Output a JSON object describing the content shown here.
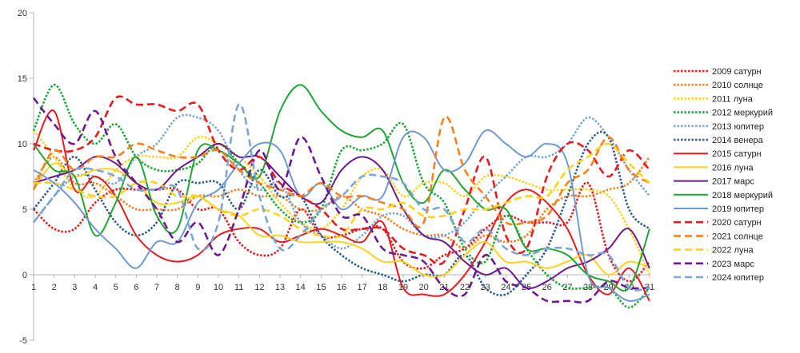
{
  "chart_data": {
    "type": "line",
    "x": [
      1,
      2,
      3,
      4,
      5,
      6,
      7,
      8,
      9,
      10,
      11,
      12,
      13,
      14,
      15,
      16,
      17,
      18,
      19,
      20,
      21,
      22,
      23,
      24,
      25,
      26,
      27,
      28,
      29,
      30,
      31
    ],
    "ylim": [
      -5,
      20
    ],
    "yticks": [
      -5,
      0,
      5,
      10,
      15,
      20
    ],
    "grid": false,
    "legend_position": "right",
    "series": [
      {
        "name": "2009 сатурн",
        "color": "#e8191f",
        "dash": "dotted",
        "values": [
          5,
          3.5,
          3.5,
          5.5,
          6.5,
          6.5,
          6.5,
          6.5,
          5,
          5,
          2.5,
          1.5,
          2,
          5,
          3,
          3,
          3.5,
          3.5,
          1,
          0.5,
          1.5,
          2,
          3.5,
          4.5,
          4,
          4,
          4,
          7,
          1.5,
          -0.5,
          1
        ]
      },
      {
        "name": "2010 солнце",
        "color": "#f5821f",
        "dash": "dotted",
        "values": [
          7,
          9,
          7,
          7,
          6,
          5,
          5,
          5,
          6,
          6,
          6.5,
          6,
          6,
          5,
          5,
          6,
          5,
          4.5,
          3.5,
          3,
          3,
          2,
          3,
          2.5,
          3,
          5,
          6,
          6,
          6.5,
          7,
          9
        ]
      },
      {
        "name": "2011 луна",
        "color": "#ffd21e",
        "dash": "dotted",
        "values": [
          11,
          9,
          6.5,
          6,
          8,
          9,
          9,
          9,
          10.5,
          10,
          9,
          7.5,
          5.5,
          4,
          3.5,
          5,
          7.5,
          8,
          6,
          7,
          7,
          6,
          7.5,
          7.5,
          7,
          6.5,
          6.5,
          6.5,
          6,
          3.5,
          0
        ]
      },
      {
        "name": "2012 меркурий",
        "color": "#1fa637",
        "dash": "dotted",
        "values": [
          11,
          14.5,
          11.5,
          10,
          11.5,
          9,
          8,
          8,
          8.5,
          10,
          8.5,
          7,
          5,
          4,
          5,
          9.5,
          9.5,
          10,
          11.5,
          7,
          5.5,
          2,
          1,
          4.5,
          2,
          0,
          -1,
          -1,
          -1,
          -2.5,
          -1
        ]
      },
      {
        "name": "2013 юпитер",
        "color": "#7ea6d4",
        "dash": "dotted",
        "values": [
          4,
          6,
          7.5,
          7.5,
          7,
          9,
          10,
          12,
          12,
          11,
          8,
          6.5,
          7,
          4,
          3,
          2,
          3,
          4.5,
          4.5,
          3,
          3,
          4,
          6,
          7.5,
          9,
          9,
          10,
          12,
          10.5,
          8,
          6
        ]
      },
      {
        "name": "2014 венера",
        "color": "#2e5d8f",
        "dash": "dotted",
        "values": [
          5,
          7,
          9,
          6.5,
          4,
          3,
          4,
          7,
          7,
          7,
          5,
          8,
          6,
          6,
          3,
          1.5,
          0.5,
          0,
          -0.5,
          0,
          0,
          1.5,
          -1,
          -1.5,
          0,
          2,
          6,
          10,
          10.5,
          5,
          3.5
        ]
      },
      {
        "name": "2015 сатурн",
        "color": "#e8191f",
        "dash": "solid",
        "values": [
          9.5,
          12.5,
          6.5,
          7.5,
          6,
          3,
          1.5,
          1,
          1.5,
          3,
          3.5,
          3.5,
          2.5,
          3,
          3.5,
          3,
          2.5,
          4,
          -1,
          -1.5,
          -1.5,
          0,
          2.5,
          5.5,
          6.5,
          5.5,
          3.5,
          0,
          -1.5,
          0.5,
          -2
        ]
      },
      {
        "name": "2016 луна",
        "color": "#ffd21e",
        "dash": "solid",
        "values": [
          6.5,
          8.5,
          7.5,
          8,
          8,
          7,
          5.5,
          5.5,
          6,
          5,
          4.5,
          3,
          3,
          2.5,
          2.5,
          2.5,
          2,
          1,
          1,
          0,
          0,
          1.5,
          2.5,
          1,
          1,
          0.5,
          1,
          1.5,
          0,
          1,
          0.5
        ]
      },
      {
        "name": "2017 марс",
        "color": "#6d1a8f",
        "dash": "solid",
        "values": [
          7,
          7.5,
          8,
          9,
          8.5,
          7,
          6.5,
          8,
          9,
          10,
          9,
          9,
          7.5,
          6,
          5.5,
          8,
          9,
          8,
          5,
          3,
          2.5,
          1,
          0,
          0.5,
          -1,
          -0.5,
          0.5,
          1,
          2,
          3.5,
          0.5
        ]
      },
      {
        "name": "2018 меркурий",
        "color": "#1fa637",
        "dash": "solid",
        "values": [
          10,
          8,
          7.5,
          3,
          5.5,
          9,
          4.5,
          3.5,
          9.5,
          9.5,
          8.5,
          7.5,
          12.5,
          14.5,
          12.5,
          11,
          10.5,
          11,
          7,
          5.5,
          8,
          6.5,
          5,
          5,
          2,
          2,
          1.5,
          0,
          -0.5,
          -1,
          3.5
        ]
      },
      {
        "name": "2019 юпитер",
        "color": "#6f9bd1",
        "dash": "solid",
        "values": [
          8,
          7,
          5.5,
          3.5,
          2,
          0.5,
          2.5,
          2.5,
          5.5,
          6.5,
          8.5,
          10,
          9.5,
          6,
          7,
          5,
          6,
          6,
          10.5,
          10.5,
          8,
          8.5,
          11,
          10,
          9,
          10,
          8.5,
          0,
          -1,
          -2,
          -1.5
        ]
      },
      {
        "name": "2020 сатурн",
        "color": "#e8191f",
        "dash": "dashed",
        "values": [
          10,
          9.5,
          9.5,
          10.5,
          13.5,
          13,
          13,
          12.5,
          13,
          9.5,
          8,
          9,
          7,
          6,
          5,
          3.5,
          3.5,
          3.5,
          2,
          1.5,
          1,
          5,
          9,
          3,
          2,
          7.5,
          10,
          9.5,
          7.5,
          9.5,
          8
        ]
      },
      {
        "name": "2021 солнце",
        "color": "#f5821f",
        "dash": "dashed",
        "values": [
          6.5,
          9.5,
          8,
          9,
          9,
          10,
          9.5,
          9,
          9,
          9.5,
          8,
          7,
          6.5,
          6,
          7,
          6,
          6,
          5.5,
          5,
          4,
          12,
          8,
          6,
          4,
          4,
          4.5,
          7,
          8,
          10.5,
          8,
          7
        ]
      },
      {
        "name": "2022 луна",
        "color": "#ffd21e",
        "dash": "dashed",
        "values": [
          7,
          7,
          6.5,
          6,
          6,
          7,
          7,
          6,
          6,
          5,
          4.5,
          5,
          4.5,
          3.5,
          3,
          3,
          5,
          5,
          5.5,
          4.5,
          4.5,
          5,
          5,
          5.5,
          6,
          6,
          8,
          9,
          10,
          8.5,
          7
        ]
      },
      {
        "name": "2023 марс",
        "color": "#6d1a8f",
        "dash": "dashed",
        "values": [
          13.5,
          11.5,
          10,
          12.5,
          9,
          7,
          5,
          2.5,
          4,
          1.5,
          5,
          9.5,
          6.5,
          10.5,
          7.5,
          4.5,
          4.5,
          2,
          1.5,
          1,
          -1,
          -1.5,
          1.5,
          -0.5,
          -1,
          -2,
          -2,
          -2,
          -0.5,
          -1,
          -1
        ]
      },
      {
        "name": "2024 юпитер",
        "color": "#7ea6d4",
        "dash": "dashed",
        "values": [
          4,
          6,
          8,
          8,
          7.5,
          6.5,
          6.5,
          6.5,
          2,
          4,
          13,
          6,
          2,
          3,
          5,
          6,
          7.5,
          7.5,
          7,
          5,
          5,
          2.5,
          3.5,
          2,
          1.5,
          2,
          2,
          1.5,
          1.5,
          -1,
          -1
        ]
      }
    ]
  }
}
